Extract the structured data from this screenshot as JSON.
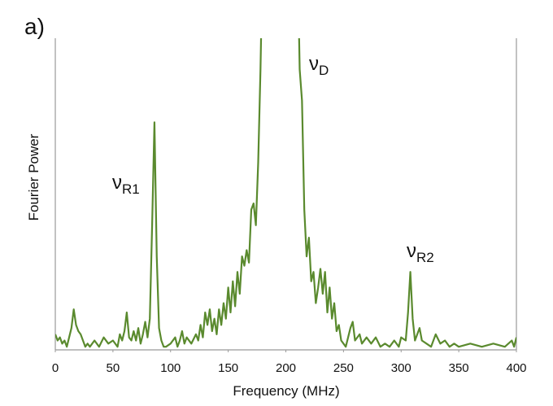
{
  "chart_data": {
    "type": "line",
    "panel_label": "a)",
    "x_label": "Frequency (MHz)",
    "y_label": "Fourier Power",
    "annotations": [
      {
        "symbol": "ν",
        "subscript": "R1"
      },
      {
        "symbol": "ν",
        "subscript": "D"
      },
      {
        "symbol": "ν",
        "subscript": "R2"
      }
    ],
    "x": [
      0,
      2,
      4,
      6,
      8,
      10,
      12,
      14,
      16,
      18,
      20,
      22,
      24,
      26,
      28,
      30,
      34,
      38,
      42,
      46,
      50,
      54,
      56,
      58,
      60,
      62,
      64,
      66,
      68,
      70,
      72,
      74,
      76,
      78,
      80,
      82,
      84,
      86,
      88,
      90,
      92,
      94,
      96,
      100,
      104,
      106,
      108,
      110,
      112,
      114,
      118,
      122,
      124,
      126,
      128,
      130,
      132,
      134,
      136,
      138,
      140,
      142,
      144,
      146,
      148,
      150,
      152,
      154,
      156,
      158,
      160,
      162,
      164,
      166,
      168,
      170,
      172,
      174,
      176,
      178,
      180,
      210,
      212,
      214,
      216,
      218,
      220,
      222,
      224,
      226,
      228,
      230,
      232,
      234,
      236,
      238,
      240,
      242,
      244,
      246,
      248,
      250,
      252,
      254,
      256,
      258,
      260,
      264,
      266,
      270,
      274,
      278,
      282,
      286,
      290,
      294,
      298,
      300,
      304,
      306,
      308,
      310,
      312,
      314,
      316,
      318,
      322,
      326,
      330,
      334,
      338,
      342,
      346,
      350,
      360,
      370,
      380,
      390,
      396,
      398,
      400
    ],
    "series": [
      {
        "color": "#5a8a2e",
        "values": [
          5,
          3,
          4,
          2,
          3,
          1,
          4,
          7,
          13,
          8,
          6,
          5,
          3,
          1,
          2,
          1,
          3,
          1,
          4,
          2,
          3,
          1,
          5,
          3,
          6,
          12,
          4,
          3,
          6,
          3,
          7,
          2,
          5,
          9,
          4,
          10,
          40,
          73,
          30,
          7,
          3,
          1,
          1,
          2,
          4,
          1,
          3,
          6,
          2,
          4,
          2,
          5,
          3,
          8,
          4,
          12,
          8,
          13,
          6,
          10,
          5,
          13,
          8,
          15,
          10,
          20,
          12,
          22,
          14,
          25,
          18,
          30,
          27,
          32,
          28,
          45,
          47,
          40,
          60,
          90,
          130,
          130,
          90,
          80,
          45,
          30,
          36,
          22,
          25,
          15,
          20,
          26,
          18,
          25,
          12,
          20,
          10,
          15,
          6,
          8,
          3,
          2,
          1,
          4,
          7,
          9,
          3,
          5,
          2,
          4,
          2,
          4,
          1,
          2,
          1,
          3,
          1,
          4,
          3,
          12,
          25,
          10,
          3,
          5,
          7,
          3,
          2,
          1,
          5,
          2,
          3,
          1,
          2,
          1,
          2,
          1,
          2,
          1,
          3,
          1,
          4
        ]
      }
    ],
    "xlim": [
      0,
      400
    ],
    "xticks": [
      0,
      50,
      100,
      150,
      200,
      250,
      300,
      350,
      400
    ],
    "ylim": [
      0,
      100
    ]
  }
}
